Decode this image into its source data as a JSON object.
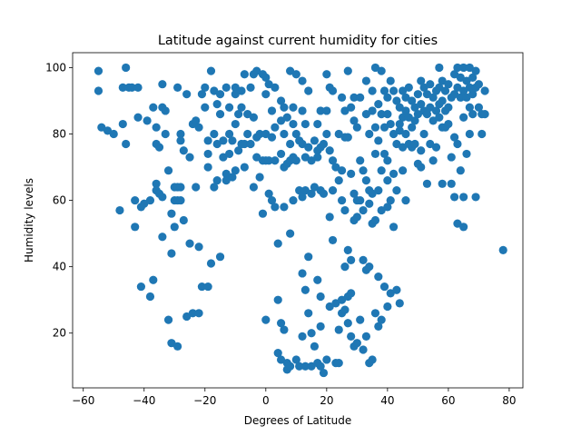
{
  "chart_data": {
    "type": "scatter",
    "title": "Latitude against current humidity for cities",
    "xlabel": "Degrees of Latitude",
    "ylabel": "Humidity levels",
    "xlim": [
      -63.5,
      84.5
    ],
    "ylim": [
      3.5,
      104.5
    ],
    "x_ticks": [
      -60,
      -40,
      -20,
      0,
      20,
      40,
      60,
      80
    ],
    "y_ticks": [
      20,
      40,
      60,
      80,
      100
    ],
    "grid": false,
    "legend": "none",
    "marker_color": "#1f77b4",
    "points": [
      [
        -55,
        99
      ],
      [
        -55,
        93
      ],
      [
        -54,
        82
      ],
      [
        -52,
        81
      ],
      [
        -50,
        80
      ],
      [
        -48,
        57
      ],
      [
        -47,
        94
      ],
      [
        -47,
        83
      ],
      [
        -46,
        77
      ],
      [
        -46,
        100
      ],
      [
        -45,
        94
      ],
      [
        -44,
        94
      ],
      [
        -43,
        52
      ],
      [
        -43,
        60
      ],
      [
        -42,
        94
      ],
      [
        -42,
        85
      ],
      [
        -41,
        58
      ],
      [
        -41,
        34
      ],
      [
        -40,
        59
      ],
      [
        -39,
        84
      ],
      [
        -38,
        31
      ],
      [
        -38,
        60
      ],
      [
        -37,
        36
      ],
      [
        -37,
        88
      ],
      [
        -36,
        82
      ],
      [
        -36,
        77
      ],
      [
        -36,
        65
      ],
      [
        -36,
        63
      ],
      [
        -35,
        76
      ],
      [
        -35,
        62
      ],
      [
        -34,
        88
      ],
      [
        -34,
        49
      ],
      [
        -34,
        61
      ],
      [
        -34,
        95
      ],
      [
        -33,
        87
      ],
      [
        -33,
        80
      ],
      [
        -32,
        69
      ],
      [
        -32,
        24
      ],
      [
        -31,
        56
      ],
      [
        -31,
        17
      ],
      [
        -31,
        44
      ],
      [
        -30,
        64
      ],
      [
        -30,
        60
      ],
      [
        -30,
        52
      ],
      [
        -29,
        16
      ],
      [
        -29,
        94
      ],
      [
        -29,
        64
      ],
      [
        -29,
        60
      ],
      [
        -28,
        80
      ],
      [
        -28,
        78
      ],
      [
        -28,
        64
      ],
      [
        -28,
        60
      ],
      [
        -27,
        54
      ],
      [
        -27,
        75
      ],
      [
        -26,
        92
      ],
      [
        -26,
        25
      ],
      [
        -25,
        47
      ],
      [
        -25,
        73
      ],
      [
        -24,
        26
      ],
      [
        -24,
        83
      ],
      [
        -23,
        84
      ],
      [
        -23,
        64
      ],
      [
        -22,
        26
      ],
      [
        -22,
        46
      ],
      [
        -22,
        82
      ],
      [
        -21,
        34
      ],
      [
        -21,
        92
      ],
      [
        -20,
        94
      ],
      [
        -20,
        88
      ],
      [
        -19,
        78
      ],
      [
        -19,
        34
      ],
      [
        -19,
        70
      ],
      [
        -19,
        74
      ],
      [
        -18,
        41
      ],
      [
        -18,
        99
      ],
      [
        -17,
        93
      ],
      [
        -17,
        80
      ],
      [
        -17,
        64
      ],
      [
        -16,
        66
      ],
      [
        -16,
        89
      ],
      [
        -16,
        77
      ],
      [
        -15,
        43
      ],
      [
        -15,
        92
      ],
      [
        -15,
        86
      ],
      [
        -14,
        78
      ],
      [
        -14,
        73
      ],
      [
        -13,
        66
      ],
      [
        -13,
        94
      ],
      [
        -13,
        68
      ],
      [
        -12,
        80
      ],
      [
        -12,
        88
      ],
      [
        -12,
        74
      ],
      [
        -11,
        78
      ],
      [
        -11,
        67
      ],
      [
        -10,
        94
      ],
      [
        -10,
        92
      ],
      [
        -10,
        83
      ],
      [
        -10,
        69
      ],
      [
        -9,
        86
      ],
      [
        -9,
        75
      ],
      [
        -8,
        88
      ],
      [
        -8,
        93
      ],
      [
        -8,
        77
      ],
      [
        -7,
        77
      ],
      [
        -7,
        98
      ],
      [
        -7,
        70
      ],
      [
        -6,
        86
      ],
      [
        -6,
        80
      ],
      [
        -5,
        94
      ],
      [
        -5,
        77
      ],
      [
        -4,
        85
      ],
      [
        -4,
        98
      ],
      [
        -4,
        64
      ],
      [
        -3,
        99
      ],
      [
        -3,
        73
      ],
      [
        -3,
        79
      ],
      [
        -2,
        67
      ],
      [
        -2,
        80
      ],
      [
        -1,
        98
      ],
      [
        -1,
        72
      ],
      [
        -1,
        56
      ],
      [
        0,
        97
      ],
      [
        0,
        92
      ],
      [
        0,
        80
      ],
      [
        0,
        72
      ],
      [
        0,
        24
      ],
      [
        1,
        95
      ],
      [
        1,
        62
      ],
      [
        1,
        72
      ],
      [
        2,
        87
      ],
      [
        2,
        79
      ],
      [
        2,
        60
      ],
      [
        3,
        94
      ],
      [
        3,
        82
      ],
      [
        3,
        72
      ],
      [
        3,
        58
      ],
      [
        4,
        47
      ],
      [
        4,
        30
      ],
      [
        4,
        14
      ],
      [
        5,
        90
      ],
      [
        5,
        84
      ],
      [
        5,
        74
      ],
      [
        5,
        23
      ],
      [
        5,
        12
      ],
      [
        6,
        88
      ],
      [
        6,
        80
      ],
      [
        6,
        70
      ],
      [
        6,
        58
      ],
      [
        6,
        21
      ],
      [
        7,
        85
      ],
      [
        7,
        71
      ],
      [
        7,
        11
      ],
      [
        7,
        9
      ],
      [
        8,
        99
      ],
      [
        8,
        77
      ],
      [
        8,
        72
      ],
      [
        8,
        50
      ],
      [
        8,
        10
      ],
      [
        9,
        88
      ],
      [
        9,
        83
      ],
      [
        9,
        73
      ],
      [
        9,
        60
      ],
      [
        10,
        98
      ],
      [
        10,
        80
      ],
      [
        10,
        72
      ],
      [
        10,
        12
      ],
      [
        11,
        78
      ],
      [
        11,
        63
      ],
      [
        11,
        10
      ],
      [
        12,
        96
      ],
      [
        12,
        87
      ],
      [
        12,
        77
      ],
      [
        12,
        61
      ],
      [
        12,
        38
      ],
      [
        12,
        19
      ],
      [
        13,
        83
      ],
      [
        13,
        73
      ],
      [
        13,
        63
      ],
      [
        13,
        33
      ],
      [
        13,
        10
      ],
      [
        14,
        93
      ],
      [
        14,
        76
      ],
      [
        14,
        43
      ],
      [
        14,
        26
      ],
      [
        15,
        72
      ],
      [
        15,
        62
      ],
      [
        15,
        20
      ],
      [
        15,
        10
      ],
      [
        16,
        78
      ],
      [
        16,
        64
      ],
      [
        16,
        16
      ],
      [
        17,
        83
      ],
      [
        17,
        75
      ],
      [
        17,
        73
      ],
      [
        17,
        36
      ],
      [
        17,
        11
      ],
      [
        18,
        87
      ],
      [
        18,
        76
      ],
      [
        18,
        63
      ],
      [
        18,
        31
      ],
      [
        18,
        22
      ],
      [
        18,
        10
      ],
      [
        19,
        77
      ],
      [
        19,
        62
      ],
      [
        19,
        8
      ],
      [
        20,
        98
      ],
      [
        20,
        87
      ],
      [
        20,
        80
      ],
      [
        20,
        12
      ],
      [
        21,
        94
      ],
      [
        21,
        75
      ],
      [
        21,
        55
      ],
      [
        21,
        28
      ],
      [
        22,
        93
      ],
      [
        22,
        72
      ],
      [
        22,
        48
      ],
      [
        22,
        63
      ],
      [
        23,
        70
      ],
      [
        23,
        29
      ],
      [
        23,
        11
      ],
      [
        24,
        80
      ],
      [
        24,
        66
      ],
      [
        24,
        21
      ],
      [
        24,
        11
      ],
      [
        25,
        91
      ],
      [
        25,
        69
      ],
      [
        25,
        60
      ],
      [
        25,
        30
      ],
      [
        25,
        26
      ],
      [
        26,
        87
      ],
      [
        26,
        79
      ],
      [
        26,
        57
      ],
      [
        26,
        40
      ],
      [
        26,
        27
      ],
      [
        27,
        99
      ],
      [
        27,
        79
      ],
      [
        27,
        45
      ],
      [
        27,
        31
      ],
      [
        27,
        23
      ],
      [
        28,
        88
      ],
      [
        28,
        68
      ],
      [
        28,
        42
      ],
      [
        28,
        32
      ],
      [
        28,
        19
      ],
      [
        29,
        91
      ],
      [
        29,
        84
      ],
      [
        29,
        62
      ],
      [
        29,
        54
      ],
      [
        29,
        16
      ],
      [
        30,
        82
      ],
      [
        30,
        60
      ],
      [
        30,
        55
      ],
      [
        30,
        17
      ],
      [
        31,
        91
      ],
      [
        31,
        72
      ],
      [
        31,
        60
      ],
      [
        31,
        24
      ],
      [
        32,
        69
      ],
      [
        32,
        57
      ],
      [
        32,
        42
      ],
      [
        32,
        15
      ],
      [
        33,
        96
      ],
      [
        33,
        86
      ],
      [
        33,
        66
      ],
      [
        33,
        39
      ],
      [
        33,
        19
      ],
      [
        34,
        80
      ],
      [
        34,
        63
      ],
      [
        34,
        59
      ],
      [
        34,
        40
      ],
      [
        34,
        11
      ],
      [
        35,
        93
      ],
      [
        35,
        87
      ],
      [
        35,
        62
      ],
      [
        35,
        53
      ],
      [
        35,
        12
      ],
      [
        36,
        100
      ],
      [
        36,
        82
      ],
      [
        36,
        74
      ],
      [
        36,
        54
      ],
      [
        36,
        26
      ],
      [
        37,
        89
      ],
      [
        37,
        78
      ],
      [
        37,
        63
      ],
      [
        37,
        37
      ],
      [
        37,
        22
      ],
      [
        38,
        99
      ],
      [
        38,
        86
      ],
      [
        38,
        69
      ],
      [
        38,
        57
      ],
      [
        38,
        24
      ],
      [
        39,
        93
      ],
      [
        39,
        82
      ],
      [
        39,
        74
      ],
      [
        39,
        34
      ],
      [
        40,
        91
      ],
      [
        40,
        86
      ],
      [
        40,
        72
      ],
      [
        40,
        66
      ],
      [
        40,
        58
      ],
      [
        40,
        28
      ],
      [
        41,
        96
      ],
      [
        41,
        83
      ],
      [
        41,
        60
      ],
      [
        41,
        32
      ],
      [
        42,
        93
      ],
      [
        42,
        80
      ],
      [
        42,
        68
      ],
      [
        42,
        52
      ],
      [
        43,
        90
      ],
      [
        43,
        77
      ],
      [
        43,
        63
      ],
      [
        43,
        33
      ],
      [
        44,
        88
      ],
      [
        44,
        83
      ],
      [
        44,
        81
      ],
      [
        44,
        29
      ],
      [
        45,
        93
      ],
      [
        45,
        85
      ],
      [
        45,
        76
      ],
      [
        45,
        69
      ],
      [
        46,
        91
      ],
      [
        46,
        87
      ],
      [
        46,
        80
      ],
      [
        46,
        60
      ],
      [
        47,
        94
      ],
      [
        47,
        85
      ],
      [
        47,
        77
      ],
      [
        48,
        90
      ],
      [
        48,
        82
      ],
      [
        48,
        76
      ],
      [
        49,
        88
      ],
      [
        49,
        84
      ],
      [
        49,
        77
      ],
      [
        50,
        92
      ],
      [
        50,
        86
      ],
      [
        50,
        71
      ],
      [
        51,
        96
      ],
      [
        51,
        89
      ],
      [
        51,
        75
      ],
      [
        51,
        70
      ],
      [
        52,
        94
      ],
      [
        52,
        87
      ],
      [
        52,
        80
      ],
      [
        53,
        92
      ],
      [
        53,
        86
      ],
      [
        53,
        65
      ],
      [
        54,
        95
      ],
      [
        54,
        88
      ],
      [
        54,
        77
      ],
      [
        55,
        91
      ],
      [
        55,
        84
      ],
      [
        55,
        72
      ],
      [
        56,
        93
      ],
      [
        56,
        87
      ],
      [
        56,
        76
      ],
      [
        57,
        100
      ],
      [
        57,
        94
      ],
      [
        57,
        89
      ],
      [
        57,
        85
      ],
      [
        58,
        96
      ],
      [
        58,
        90
      ],
      [
        58,
        82
      ],
      [
        58,
        65
      ],
      [
        59,
        93
      ],
      [
        59,
        87
      ],
      [
        59,
        82
      ],
      [
        60,
        95
      ],
      [
        60,
        88
      ],
      [
        60,
        83
      ],
      [
        61,
        91
      ],
      [
        61,
        73
      ],
      [
        61,
        65
      ],
      [
        62,
        98
      ],
      [
        62,
        92
      ],
      [
        62,
        79
      ],
      [
        62,
        61
      ],
      [
        63,
        100
      ],
      [
        63,
        94
      ],
      [
        63,
        77
      ],
      [
        63,
        53
      ],
      [
        64,
        97
      ],
      [
        64,
        91
      ],
      [
        64,
        69
      ],
      [
        65,
        100
      ],
      [
        65,
        93
      ],
      [
        65,
        85
      ],
      [
        65,
        61
      ],
      [
        65,
        52
      ],
      [
        66,
        96
      ],
      [
        66,
        91
      ],
      [
        66,
        74
      ],
      [
        67,
        100
      ],
      [
        67,
        94
      ],
      [
        67,
        88
      ],
      [
        67,
        80
      ],
      [
        68,
        97
      ],
      [
        68,
        92
      ],
      [
        68,
        86
      ],
      [
        69,
        99
      ],
      [
        69,
        94
      ],
      [
        69,
        61
      ],
      [
        70,
        95
      ],
      [
        70,
        88
      ],
      [
        71,
        86
      ],
      [
        71,
        80
      ],
      [
        72,
        93
      ],
      [
        72,
        86
      ],
      [
        78,
        45
      ]
    ]
  }
}
